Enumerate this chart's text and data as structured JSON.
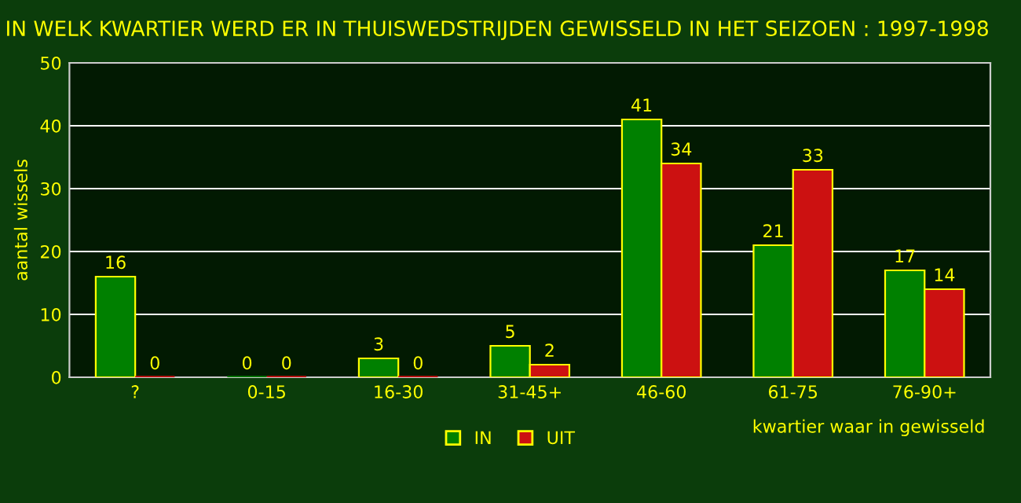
{
  "chart_data": {
    "type": "bar",
    "title": "IN WELK KWARTIER WERD ER IN THUISWEDSTRIJDEN GEWISSELD IN HET SEIZOEN : 1997-1998",
    "xlabel": "kwartier waar in gewisseld",
    "ylabel": "aantal wissels",
    "categories": [
      "?",
      "0-15",
      "16-30",
      "31-45+",
      "46-60",
      "61-75",
      "76-90+"
    ],
    "series": [
      {
        "name": "IN",
        "color": "#008000",
        "values": [
          16,
          0,
          3,
          5,
          41,
          21,
          17
        ]
      },
      {
        "name": "UIT",
        "color": "#cc1111",
        "values": [
          0,
          0,
          0,
          2,
          34,
          33,
          14
        ]
      }
    ],
    "ylim": [
      0,
      50
    ],
    "yticks": [
      0,
      10,
      20,
      30,
      40,
      50
    ],
    "grid": "y",
    "legend": "bottom",
    "data_labels": true
  }
}
